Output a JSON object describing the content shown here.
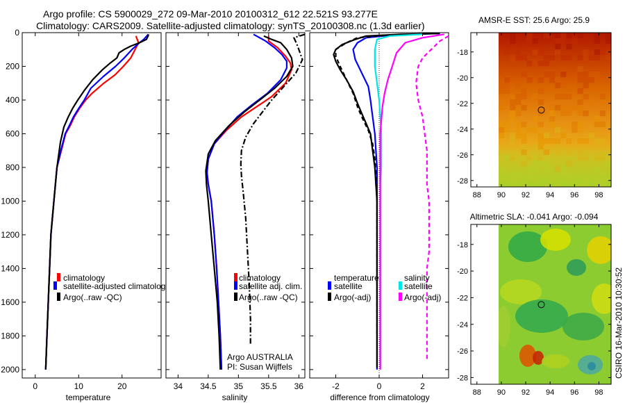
{
  "header": {
    "line1": "Argo profile: CS 5900029_272 09-Mar-2010 20100312_612 22.521S 93.277E",
    "line2": "Climatology: CARS2009. Satellite-adjusted climatology: synTS_20100308.nc (1.3d earlier)"
  },
  "side_label": "CSIRO 16-Mar-2010 10:30:52",
  "chart_data": [
    {
      "id": "temperature",
      "type": "line",
      "xlabel": "temperature",
      "xlim": [
        -3,
        29
      ],
      "ylim": [
        2050,
        0
      ],
      "xticks": [
        0,
        10,
        20
      ],
      "yticks": [
        0,
        200,
        400,
        600,
        800,
        1000,
        1200,
        1400,
        1600,
        1800,
        2000
      ],
      "legend": [
        "climatology",
        "satellite-adjusted climatolog",
        "Argo(..raw -QC)"
      ],
      "series": [
        {
          "name": "climatology",
          "color": "#ff0000",
          "dash": "",
          "x": [
            23.2,
            23.5,
            23.8,
            23.0,
            22.0,
            20.3,
            18.4,
            15.8,
            13.1,
            11.6,
            10.2,
            9.0,
            8.1,
            7.0,
            6.0,
            5.0,
            4.3,
            3.6,
            3.3,
            3.0,
            2.7,
            2.4
          ],
          "y": [
            20,
            40,
            60,
            100,
            150,
            200,
            250,
            300,
            360,
            400,
            450,
            500,
            550,
            600,
            700,
            800,
            1000,
            1200,
            1400,
            1600,
            1800,
            2000
          ]
        },
        {
          "name": "satellite-adjusted climatolog",
          "color": "#0000ff",
          "dash": "",
          "x": [
            26.0,
            25.7,
            25.0,
            24.0,
            22.3,
            20.5,
            18.5,
            15.7,
            12.8,
            11.3,
            10.0,
            8.8,
            7.9,
            6.9,
            5.9,
            5.0,
            4.3,
            3.6,
            3.3,
            3.0,
            2.7,
            2.4
          ],
          "y": [
            10,
            20,
            40,
            60,
            100,
            150,
            200,
            260,
            330,
            400,
            450,
            500,
            550,
            600,
            700,
            800,
            1000,
            1200,
            1400,
            1600,
            1800,
            2000
          ]
        },
        {
          "name": "Argo(..raw -QC)",
          "color": "#000000",
          "dash": "",
          "x": [
            26.1,
            26.0,
            25.6,
            24.0,
            22.0,
            20.5,
            19.3,
            18.8,
            17.3,
            15.5,
            13.2,
            11.4,
            9.8,
            8.6,
            7.6,
            6.6,
            5.8,
            5.0,
            4.3,
            3.6,
            3.3,
            3.0,
            2.7,
            2.4
          ],
          "y": [
            10,
            20,
            40,
            60,
            80,
            100,
            120,
            150,
            180,
            220,
            280,
            340,
            400,
            450,
            500,
            560,
            650,
            800,
            1000,
            1200,
            1400,
            1600,
            1800,
            2000
          ]
        }
      ]
    },
    {
      "id": "salinity",
      "type": "line",
      "xlabel": "salinity",
      "xlim": [
        33.8,
        36.1
      ],
      "ylim": [
        2050,
        0
      ],
      "xticks": [
        34,
        34.5,
        35,
        35.5,
        36
      ],
      "xticklabels": [
        "34",
        "34.5",
        "35",
        "35.5",
        "36"
      ],
      "legend": [
        "climatology",
        "satellite adj. clim.",
        "Argo(..raw -QC)"
      ],
      "annotations": [
        "Argo AUSTRALIA",
        "PI: Susan Wijffels"
      ],
      "series": [
        {
          "name": "climatology",
          "color": "#ff0000",
          "dash": "",
          "x": [
            35.5,
            35.5,
            35.65,
            35.78,
            35.86,
            35.88,
            35.78,
            35.55,
            35.3,
            35.05,
            34.8,
            34.6,
            34.5,
            34.48,
            34.5,
            34.55,
            34.6,
            34.64,
            34.67,
            34.7,
            34.72
          ],
          "y": [
            20,
            50,
            90,
            140,
            180,
            220,
            300,
            380,
            440,
            500,
            580,
            660,
            750,
            830,
            900,
            1000,
            1200,
            1400,
            1600,
            1800,
            2000
          ]
        },
        {
          "name": "satellite adj. clim.",
          "color": "#0000ff",
          "dash": "",
          "x": [
            35.25,
            35.45,
            35.6,
            35.72,
            35.8,
            35.8,
            35.7,
            35.48,
            35.22,
            34.98,
            34.78,
            34.6,
            34.5,
            34.48,
            34.5,
            34.55,
            34.6,
            34.64,
            34.67,
            34.7,
            34.72
          ],
          "y": [
            10,
            50,
            90,
            130,
            170,
            210,
            280,
            360,
            430,
            500,
            580,
            660,
            750,
            830,
            900,
            1000,
            1200,
            1400,
            1600,
            1800,
            2000
          ]
        },
        {
          "name": "Argo(..raw -QC)",
          "color": "#000000",
          "dash": "",
          "x": [
            35.42,
            35.55,
            35.7,
            35.8,
            35.88,
            35.9,
            35.8,
            35.6,
            35.35,
            35.1,
            34.85,
            34.62,
            34.5,
            34.46,
            34.47,
            34.5,
            34.55,
            34.6,
            34.65,
            34.68,
            34.7
          ],
          "y": [
            20,
            40,
            60,
            100,
            150,
            200,
            260,
            330,
            400,
            470,
            550,
            640,
            720,
            820,
            900,
            1000,
            1200,
            1400,
            1600,
            1800,
            2000
          ]
        },
        {
          "name": "Argo dash-dot",
          "color": "#000000",
          "dash": "8,3,2,3",
          "x": [
            36.1,
            35.92,
            35.98,
            36.06,
            35.95,
            35.75,
            35.55,
            35.4,
            35.25,
            35.12,
            35.05,
            35.04,
            35.05,
            35.08,
            35.12,
            35.15,
            35.18,
            35.2,
            35.2
          ],
          "y": [
            10,
            30,
            80,
            160,
            240,
            320,
            400,
            470,
            540,
            620,
            700,
            780,
            850,
            950,
            1100,
            1300,
            1500,
            1700,
            1850
          ]
        }
      ]
    },
    {
      "id": "difference",
      "type": "line",
      "xlabel": "difference from climatology",
      "xlim": [
        -3.2,
        3.2
      ],
      "ylim": [
        2050,
        0
      ],
      "xticks": [
        -2,
        0,
        2
      ],
      "legend_left_title": "temperature",
      "legend_right_title": "salinity",
      "legend": [
        "satellite",
        "Argo(-adj)",
        "satellite",
        "Argo(-adj)"
      ],
      "series": [
        {
          "name": "temperature satellite",
          "color": "#0000ff",
          "dash": "",
          "x": [
            2.8,
            1.5,
            0.5,
            -0.6,
            -1.0,
            -1.2,
            -1.1,
            -0.8,
            -0.5,
            -0.4,
            -0.3,
            -0.2,
            -0.15,
            -0.1,
            -0.1,
            -0.1,
            -0.1,
            -0.1,
            -0.1,
            -0.1,
            -0.1
          ],
          "y": [
            5,
            10,
            15,
            30,
            60,
            100,
            160,
            240,
            320,
            400,
            500,
            600,
            700,
            800,
            900,
            1000,
            1200,
            1400,
            1600,
            1800,
            2000
          ]
        },
        {
          "name": "temperature Argo(-adj)",
          "color": "#000000",
          "dash": "6,4",
          "x": [
            2.5,
            0.5,
            -1.0,
            -1.5,
            -2.0,
            -2.0,
            -1.8,
            -1.5,
            -1.2,
            -1.0,
            -0.8,
            -0.5,
            -0.3,
            -0.2,
            -0.15,
            -0.1,
            -0.1,
            -0.1,
            -0.1,
            -0.1
          ],
          "y": [
            5,
            15,
            30,
            60,
            100,
            140,
            200,
            280,
            360,
            440,
            500,
            580,
            660,
            750,
            850,
            1000,
            1200,
            1400,
            1600,
            1800
          ]
        },
        {
          "name": "temperature Argo raw",
          "color": "#000000",
          "dash": "",
          "x": [
            2.8,
            1.0,
            -0.6,
            -1.1,
            -1.7,
            -2.0,
            -2.1,
            -2.0,
            -1.8,
            -1.5,
            -1.2,
            -1.0,
            -0.8,
            -0.6,
            -0.4,
            -0.3,
            -0.2,
            -0.15,
            -0.1,
            -0.1,
            -0.1,
            -0.1
          ],
          "y": [
            5,
            10,
            20,
            40,
            70,
            100,
            130,
            170,
            220,
            280,
            350,
            420,
            480,
            540,
            600,
            700,
            800,
            900,
            1000,
            1200,
            1500,
            1990
          ]
        },
        {
          "name": "salinity satellite",
          "color": "#00e5e5",
          "dash": "",
          "x": [
            2.0,
            0.5,
            -0.1,
            -0.2,
            -0.2,
            -0.1,
            0.0,
            0.05,
            0.1,
            0.1,
            0.1,
            0.05,
            0.05,
            0.05,
            0.05,
            0.05,
            0.05,
            0.05,
            0.05,
            0.05
          ],
          "y": [
            10,
            20,
            40,
            100,
            200,
            300,
            400,
            500,
            600,
            700,
            800,
            900,
            1000,
            1100,
            1200,
            1400,
            1600,
            1800,
            1900,
            2000
          ]
        },
        {
          "name": "salinity Argo(-adj)",
          "color": "#ff00ff",
          "dash": "",
          "x": [
            3.0,
            2.0,
            1.2,
            0.8,
            0.6,
            0.4,
            0.25,
            0.15,
            0.1,
            0.05,
            0.05,
            0.05,
            0.05,
            0.05,
            0.05,
            0.05,
            0.05,
            0.05
          ],
          "y": [
            10,
            30,
            60,
            120,
            200,
            280,
            360,
            440,
            520,
            600,
            700,
            850,
            1000,
            1200,
            1400,
            1600,
            1800,
            2000
          ]
        },
        {
          "name": "salinity Argo raw",
          "color": "#ff00ff",
          "dash": "6,4",
          "x": [
            3.2,
            2.8,
            2.4,
            2.0,
            1.8,
            1.7,
            1.8,
            2.0,
            2.1,
            2.2,
            2.2,
            2.2,
            2.3,
            2.3,
            2.3,
            2.3,
            2.2,
            2.2,
            2.2,
            2.2,
            2.2,
            2.2
          ],
          "y": [
            20,
            50,
            100,
            150,
            200,
            300,
            400,
            500,
            600,
            700,
            800,
            900,
            1000,
            1100,
            1200,
            1300,
            1400,
            1500,
            1600,
            1700,
            1800,
            1950
          ]
        }
      ]
    },
    {
      "id": "sst_map",
      "type": "heatmap",
      "title": "AMSR-E SST: 25.6 Argo: 25.9",
      "xlim": [
        87.5,
        99
      ],
      "ylim": [
        -28.5,
        -16.5
      ],
      "xticks": [
        88,
        90,
        92,
        94,
        96,
        98
      ],
      "yticks": [
        -18,
        -20,
        -22,
        -24,
        -26,
        -28
      ],
      "marker": {
        "lon": 93.277,
        "lat": -22.521
      }
    },
    {
      "id": "sla_map",
      "type": "heatmap",
      "title": "Altimetric SLA: -0.041 Argo: -0.094",
      "xlim": [
        87.5,
        99
      ],
      "ylim": [
        -28.5,
        -16.5
      ],
      "xticks": [
        88,
        90,
        92,
        94,
        96,
        98
      ],
      "yticks": [
        -18,
        -20,
        -22,
        -24,
        -26,
        -28
      ],
      "marker": {
        "lon": 93.277,
        "lat": -22.521
      }
    }
  ]
}
